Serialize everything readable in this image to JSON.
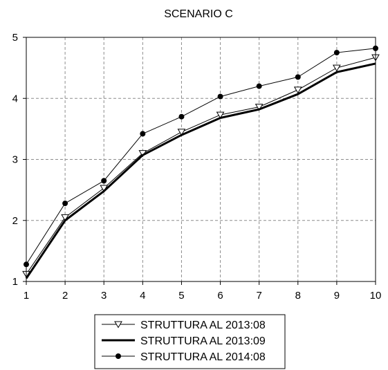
{
  "chart_data": {
    "type": "line",
    "title": "SCENARIO C",
    "xlabel": "",
    "ylabel": "",
    "x": [
      1,
      2,
      3,
      4,
      5,
      6,
      7,
      8,
      9,
      10
    ],
    "xlim": [
      1,
      10
    ],
    "ylim": [
      1,
      5
    ],
    "x_ticks": [
      "1",
      "2",
      "3",
      "4",
      "5",
      "6",
      "7",
      "8",
      "9",
      "10"
    ],
    "y_ticks": [
      "1",
      "2",
      "3",
      "4",
      "5"
    ],
    "grid": true,
    "legend_position": "bottom",
    "series": [
      {
        "name": "STRUTTURA AL 2013:08",
        "marker": "open-triangle-down",
        "line": "thin",
        "color": "#000000",
        "values": [
          1.12,
          2.05,
          2.53,
          3.1,
          3.45,
          3.73,
          3.86,
          4.14,
          4.5,
          4.67
        ]
      },
      {
        "name": "STRUTTURA AL 2013:09",
        "marker": "none",
        "line": "thick",
        "color": "#000000",
        "values": [
          1.05,
          2.0,
          2.48,
          3.07,
          3.4,
          3.68,
          3.82,
          4.07,
          4.43,
          4.57
        ]
      },
      {
        "name": "STRUTTURA AL 2014:08",
        "marker": "filled-circle",
        "line": "thin",
        "color": "#000000",
        "values": [
          1.28,
          2.28,
          2.65,
          3.42,
          3.7,
          4.03,
          4.2,
          4.35,
          4.75,
          4.82
        ]
      }
    ]
  }
}
